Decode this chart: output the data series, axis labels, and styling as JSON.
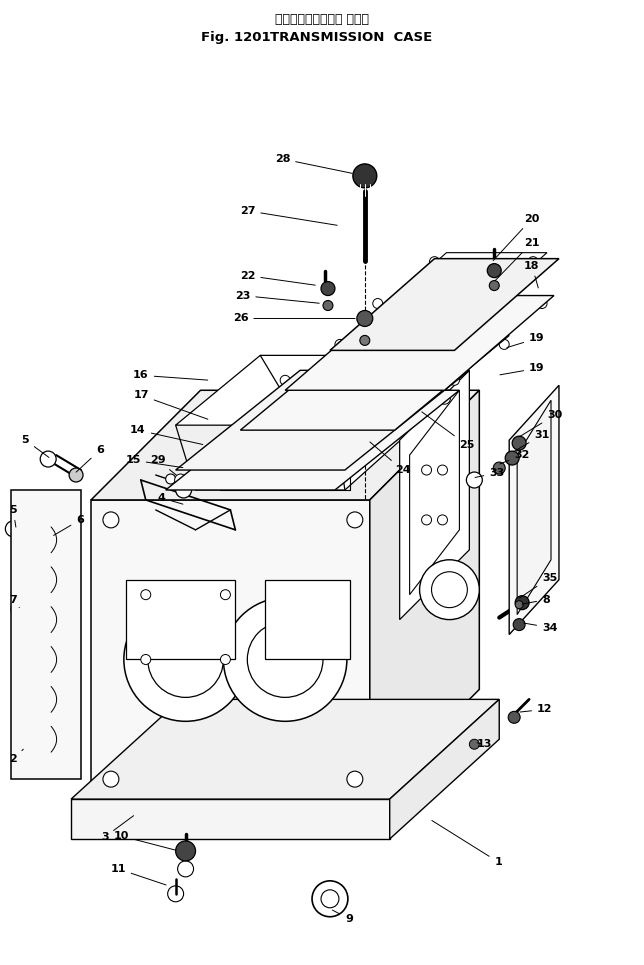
{
  "title_japanese": "トランスミッション ケース",
  "title_fig": "Fig. 1201",
  "title_eng": "TRANSMISSION  CASE",
  "bg_color": "#ffffff",
  "lc": "#000000",
  "fig_w": 6.44,
  "fig_h": 9.65,
  "dpi": 100
}
